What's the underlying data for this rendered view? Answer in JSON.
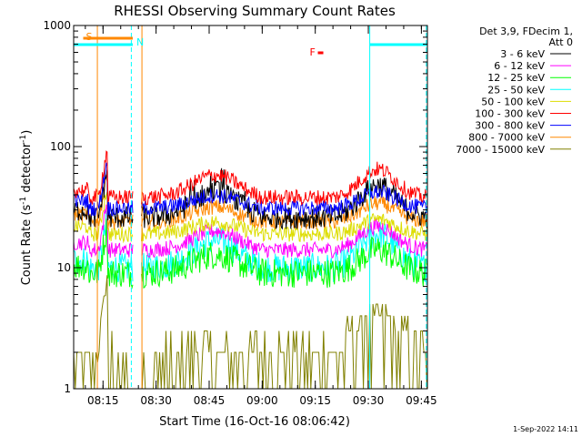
{
  "chart_data": {
    "type": "line",
    "title": "RHESSI Observing Summary Count Rates",
    "xlabel": "Start Time (16-Oct-16 08:06:42)",
    "ylabel_main": "Count Rate (s",
    "ylabel_sup1": "-1",
    "ylabel_mid": " detector",
    "ylabel_sup2": "-1",
    "ylabel_end": ")",
    "yscale": "log",
    "ylim": [
      1,
      1000
    ],
    "xlim_minutes": [
      0,
      100
    ],
    "y_ticks": [
      {
        "value": 1,
        "label": "1"
      },
      {
        "value": 10,
        "label": "10"
      },
      {
        "value": 100,
        "label": "100"
      },
      {
        "value": 1000,
        "label": "1000"
      }
    ],
    "x_ticks": [
      {
        "minute": 8.3,
        "label": "08:15"
      },
      {
        "minute": 23.3,
        "label": "08:30"
      },
      {
        "minute": 38.3,
        "label": "08:45"
      },
      {
        "minute": 53.3,
        "label": "09:00"
      },
      {
        "minute": 68.3,
        "label": "09:15"
      },
      {
        "minute": 83.3,
        "label": "09:30"
      },
      {
        "minute": 98.3,
        "label": "09:45"
      }
    ],
    "legend_header": [
      "Det 3,9, FDecim 1,",
      "Att 0"
    ],
    "legend_position": "right",
    "series": [
      {
        "name": "3 - 6 keV",
        "color": "#000000",
        "base": 26,
        "peak": 48
      },
      {
        "name": "6 - 12 keV",
        "color": "#ff00ff",
        "base": 14,
        "peak": 22
      },
      {
        "name": "12 - 25 keV",
        "color": "#00ff00",
        "base": 9,
        "peak": 14
      },
      {
        "name": "25 - 50 keV",
        "color": "#00ffff",
        "base": 10,
        "peak": 19
      },
      {
        "name": "50 - 100 keV",
        "color": "#dddd00",
        "base": 19,
        "peak": 25
      },
      {
        "name": "100 - 300 keV",
        "color": "#ff0000",
        "base": 38,
        "peak": 65
      },
      {
        "name": "300 - 800 keV",
        "color": "#0000ff",
        "base": 31,
        "peak": 42
      },
      {
        "name": "800 - 7000 keV",
        "color": "#ff8800",
        "base": 24,
        "peak": 34
      },
      {
        "name": "7000 - 15000 keV",
        "color": "#808000",
        "base": 1.5,
        "peak": 4
      }
    ],
    "intervals": [
      {
        "label": "S",
        "color": "#ff8800",
        "start": 2.7,
        "end": 16.7
      },
      {
        "label": "N",
        "color": "#00ffff",
        "start": 0,
        "end": 16.7
      },
      {
        "label": "N",
        "color": "#00ffff",
        "start": 83.7,
        "end": 100
      }
    ],
    "flare_marker": {
      "label": "F",
      "color": "#ff0000",
      "minute": 68
    },
    "vertical_lines": [
      {
        "minute": 0,
        "color": "#00ffff",
        "style": "solid"
      },
      {
        "minute": 6.7,
        "color": "#ff8800",
        "style": "solid"
      },
      {
        "minute": 16.3,
        "color": "#00ffff",
        "style": "dashed"
      },
      {
        "minute": 19.3,
        "color": "#ff8800",
        "style": "solid"
      },
      {
        "minute": 83.7,
        "color": "#00ffff",
        "style": "solid"
      },
      {
        "minute": 99.7,
        "color": "#00ffff",
        "style": "dashed"
      }
    ],
    "timestamp": "1-Sep-2022 14:11"
  }
}
